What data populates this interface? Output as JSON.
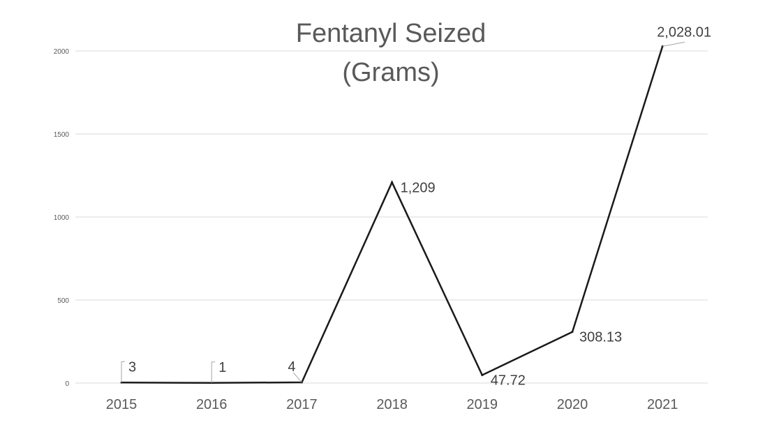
{
  "chart_data": {
    "type": "line",
    "title_lines": [
      "Fentanyl Seized",
      "(Grams)"
    ],
    "categories": [
      "2015",
      "2016",
      "2017",
      "2018",
      "2019",
      "2020",
      "2021"
    ],
    "series": [
      {
        "values": [
          3,
          1,
          4,
          1209,
          47.72,
          308.13,
          2028.01
        ],
        "labels": [
          "3",
          "1",
          "4",
          "1,209",
          "47.72",
          "308.13",
          "2,028.01"
        ],
        "color": "#1a1a1a"
      }
    ],
    "y_ticks": [
      0,
      500,
      1000,
      1500,
      2000
    ],
    "ylim": [
      0,
      2000
    ],
    "grid": true,
    "legend": "none"
  }
}
